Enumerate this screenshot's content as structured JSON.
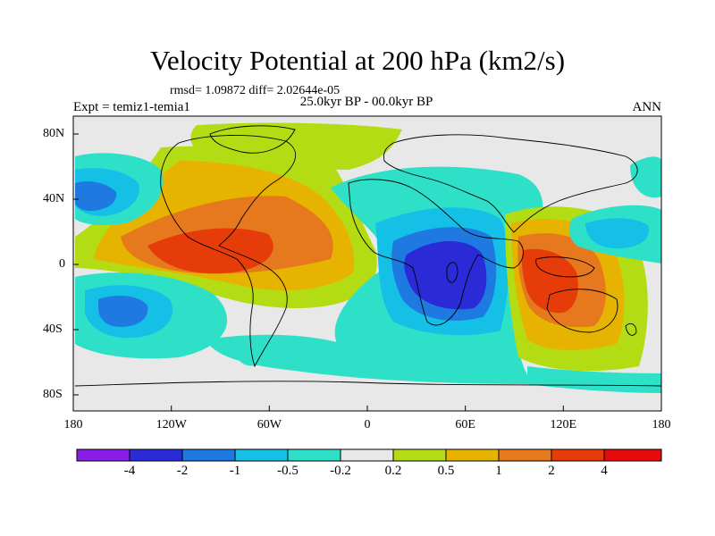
{
  "title": "Velocity Potential at 200 hPa (km2/s)",
  "stats": "rmsd= 1.09872 diff= 2.02644e-05",
  "period": "25.0kyr BP - 00.0kyr BP",
  "experiment": "Expt = temiz1-temia1",
  "season": "ANN",
  "y_axis_labels": [
    "80N",
    "40N",
    "0",
    "40S",
    "80S"
  ],
  "x_axis_labels": [
    "180",
    "120W",
    "60W",
    "0",
    "60E",
    "120E",
    "180"
  ],
  "colorbar": {
    "labels": [
      "-4",
      "-2",
      "-1",
      "-0.5",
      "-0.2",
      "0.2",
      "0.5",
      "1",
      "2",
      "4"
    ],
    "colors": [
      "#8a1ee6",
      "#2a2ad6",
      "#1e7ae0",
      "#14c0e6",
      "#2ee0c8",
      "#e8e8e8",
      "#b4dc14",
      "#e6b400",
      "#e6781e",
      "#e63c0a",
      "#e60a0a"
    ]
  }
}
